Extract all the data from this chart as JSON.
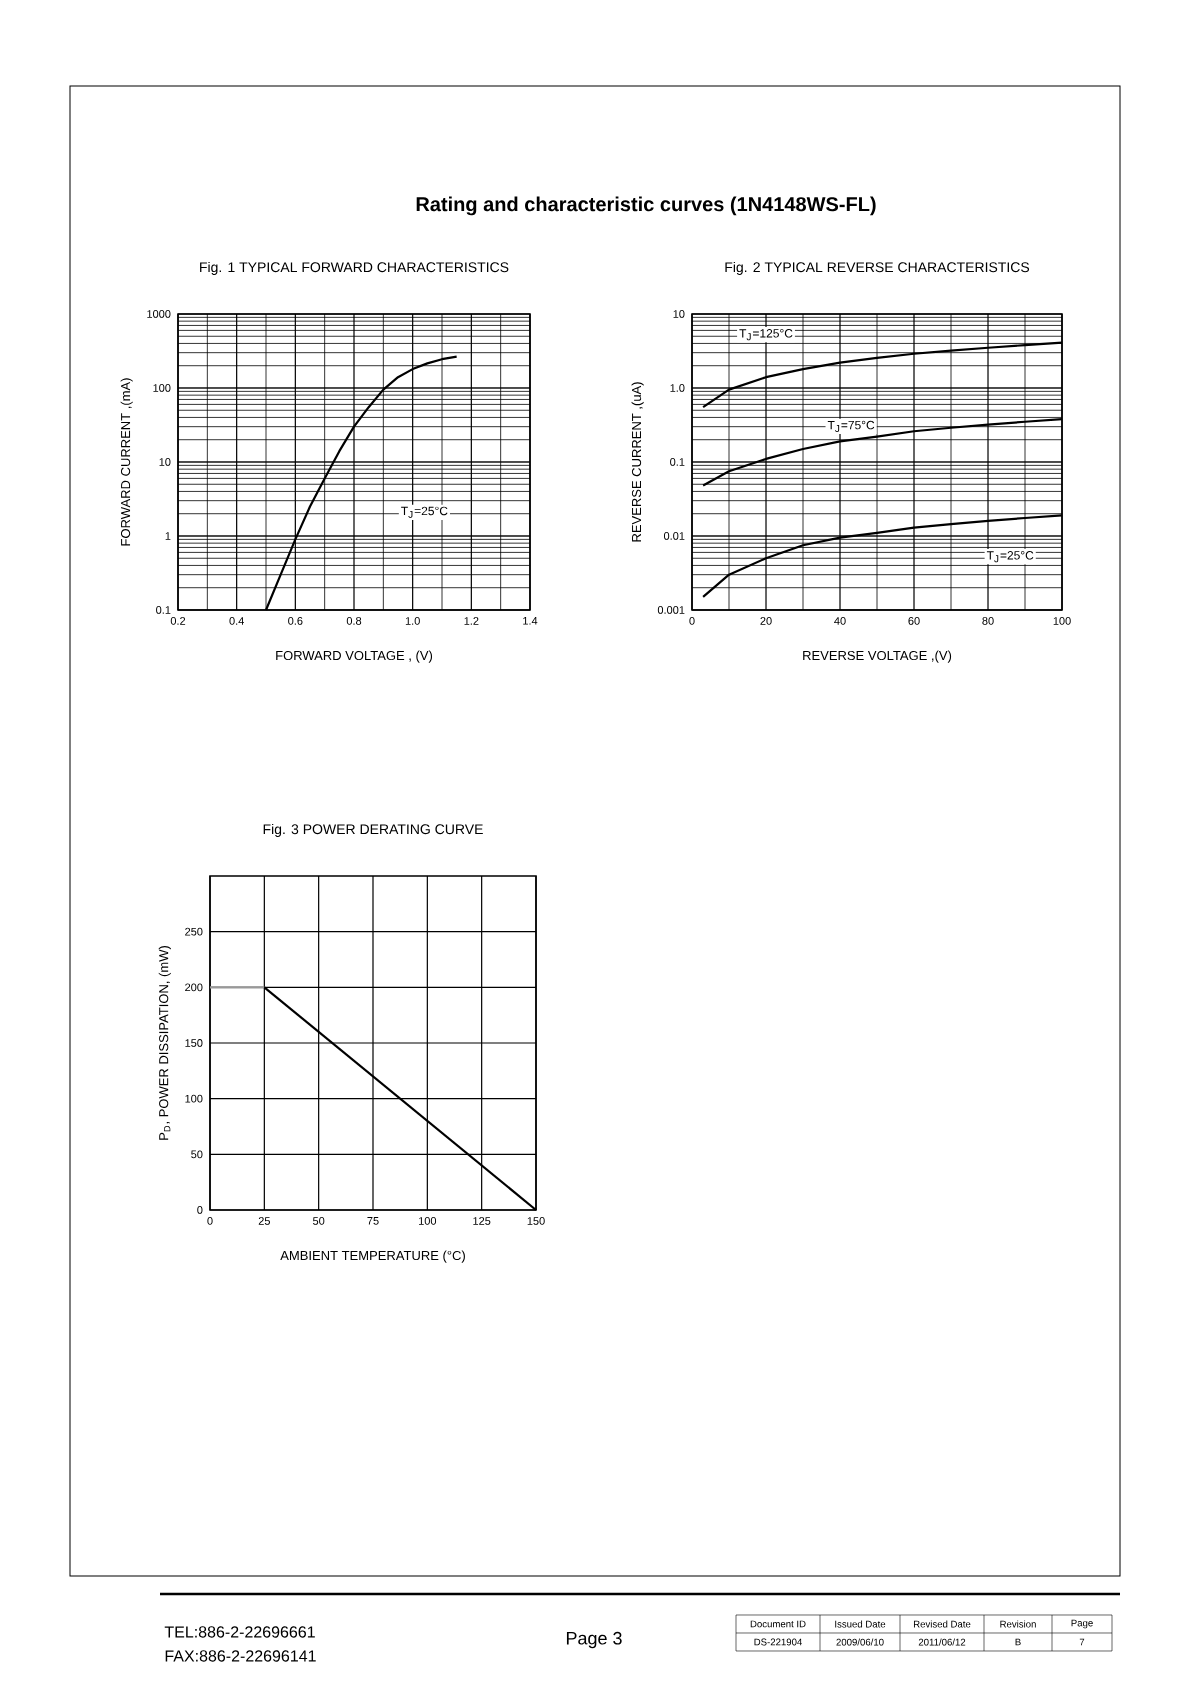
{
  "chart_data": [
    {
      "type": "other",
      "title": "Rating and characteristic curves (1N4148WS-FL)",
      "annotations": [
        "TEL:886-2-22696661",
        "FAX:886-2-22696141",
        "Page 3",
        "Document ID",
        "Issued Date",
        "Revised Date",
        "Revision",
        "Page",
        "DS-221904",
        "2009/06/10",
        "2011/06/12",
        "B",
        "7"
      ]
    },
    {
      "type": "line",
      "title": "Fig. 1 TYPICAL FORWARD CHARACTERISTICS",
      "xlabel": "FORWARD  VOLTAGE , (V)",
      "ylabel": "FORWARD  CURRENT ,(mA)",
      "log": "y",
      "grid": true,
      "xlim": [
        0.2,
        1.4
      ],
      "xticks": [
        0.2,
        0.4,
        0.6,
        0.8,
        {
          "value": 1,
          "label": "1.0"
        },
        1.2,
        1.4
      ],
      "ylim": [
        0.1,
        1000
      ],
      "yticks": [
        0.1,
        1,
        10,
        100,
        1000
      ],
      "series": [
        {
          "name": "T$_{J}$=25°C",
          "color": "#000000",
          "x": [
            0.5,
            0.55,
            0.6,
            0.65,
            0.7,
            0.75,
            0.8,
            0.85,
            0.9,
            0.95,
            1.0,
            1.05,
            1.1,
            1.15
          ],
          "values": [
            0.1,
            0.3,
            0.9,
            2.5,
            6,
            14,
            30,
            55,
            95,
            140,
            180,
            215,
            245,
            265
          ]
        }
      ]
    },
    {
      "type": "line",
      "title": "Fig. 2 TYPICAL REVERSE CHARACTERISTICS",
      "xlabel": "REVERSE  VOLTAGE ,(V)",
      "ylabel": "REVERSE  CURRENT ,(uA)",
      "log": "y",
      "grid": true,
      "xlim": [
        0,
        100
      ],
      "xticks": [
        0,
        20,
        40,
        60,
        80,
        100
      ],
      "ylim": [
        0.001,
        10
      ],
      "yticks": [
        0.001,
        0.01,
        0.1,
        {
          "value": 1,
          "label": "1.0"
        },
        10
      ],
      "series": [
        {
          "name": "T$_{J}$=125°C",
          "color": "#000000",
          "x": [
            3,
            10,
            20,
            30,
            40,
            50,
            60,
            70,
            80,
            90,
            100
          ],
          "values": [
            0.55,
            0.95,
            1.4,
            1.8,
            2.2,
            2.55,
            2.9,
            3.2,
            3.5,
            3.8,
            4.1
          ]
        },
        {
          "name": "T$_{J}$=75°C",
          "color": "#000000",
          "x": [
            3,
            10,
            20,
            30,
            40,
            50,
            60,
            70,
            80,
            90,
            100
          ],
          "values": [
            0.048,
            0.075,
            0.11,
            0.15,
            0.19,
            0.22,
            0.26,
            0.29,
            0.32,
            0.35,
            0.38
          ]
        },
        {
          "name": "T$_{J}$=25°C",
          "color": "#000000",
          "x": [
            3,
            10,
            20,
            30,
            40,
            50,
            60,
            70,
            80,
            90,
            100
          ],
          "values": [
            0.0015,
            0.003,
            0.005,
            0.0075,
            0.0095,
            0.011,
            0.013,
            0.0145,
            0.016,
            0.0175,
            0.019
          ]
        }
      ]
    },
    {
      "type": "line",
      "title": "Fig. 3 POWER DERATING CURVE",
      "xlabel": "AMBIENT  TEMPERATURE (°C)",
      "ylabel": "P$_{D}$, POWER DISSIPATION, (mW)",
      "grid": true,
      "xlim": [
        0,
        150
      ],
      "xticks": [
        0,
        25,
        50,
        75,
        100,
        125,
        150
      ],
      "ylim": [
        0,
        300
      ],
      "yticks": [
        0,
        50,
        100,
        150,
        200,
        250
      ],
      "series": [
        {
          "color": "#999999",
          "x": [
            0,
            25
          ],
          "values": [
            200,
            200
          ]
        },
        {
          "color": "#000000",
          "x": [
            25,
            150
          ],
          "values": [
            200,
            0
          ]
        }
      ]
    }
  ]
}
